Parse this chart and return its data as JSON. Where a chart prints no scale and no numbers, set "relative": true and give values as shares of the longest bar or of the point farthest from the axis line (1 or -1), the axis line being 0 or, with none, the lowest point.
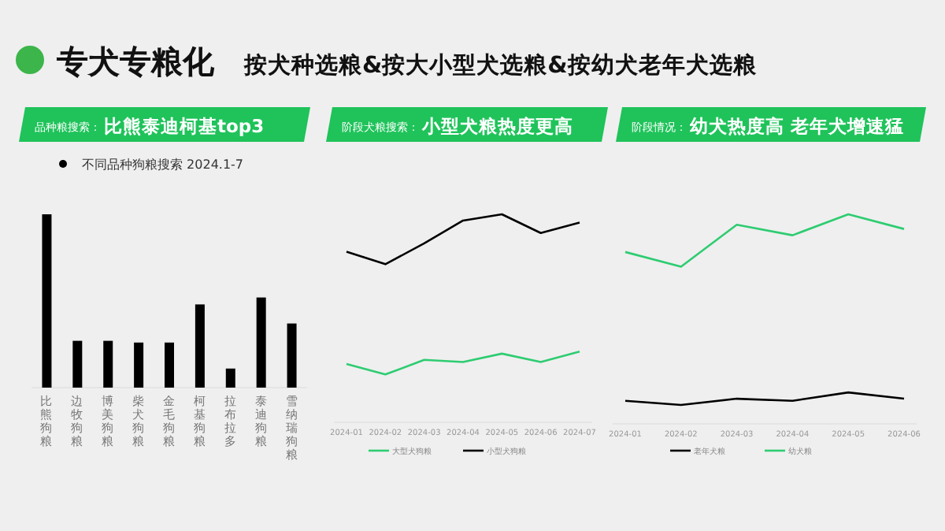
{
  "chart_data": [
    {
      "type": "bar",
      "title": "专犬专粮化",
      "subtitle": "按犬种选粮&按大小型犬选粮&按幼犬老年犬选粮",
      "annotations": [
        "品种粮搜索：",
        "比熊泰迪柯基top3"
      ],
      "relative": true,
      "legend": "top left",
      "categories": [
        "比熊狗粮",
        "边牧狗粮",
        "博美狗粮",
        "柴犬狗粮",
        "金毛狗粮",
        "柯基狗粮",
        "拉布拉多",
        "泰迪狗粮",
        "雪纳瑞狗粮"
      ],
      "series": [
        {
          "name": "不同品种狗粮搜索  2024.1-7",
          "color": "#000000",
          "values": [
            1,
            0.27,
            0.27,
            0.26,
            0.26,
            0.48,
            0.11,
            0.52,
            0.37
          ]
        }
      ]
    },
    {
      "type": "line",
      "title": "阶段犬粮搜索：",
      "subtitle": "小型犬粮热度更高",
      "relative": true,
      "legend": "bottom",
      "categories": [
        "2024-01",
        "2024-02",
        "2024-03",
        "2024-04",
        "2024-05",
        "2024-06",
        "2024-07"
      ],
      "series": [
        {
          "name": "大型犬狗粮",
          "color": "#2ecc71",
          "values": [
            0.28,
            0.23,
            0.3,
            0.29,
            0.33,
            0.29,
            0.34
          ]
        },
        {
          "name": "小型犬狗粮",
          "color": "#000000",
          "values": [
            0.82,
            0.76,
            0.86,
            0.97,
            1,
            0.91,
            0.96
          ]
        }
      ]
    },
    {
      "type": "line",
      "title": "阶段情况：",
      "subtitle": "幼犬热度高 老年犬增速猛",
      "relative": true,
      "legend": "bottom",
      "categories": [
        "2024-01",
        "2024-02",
        "2024-03",
        "2024-04",
        "2024-05",
        "2024-06"
      ],
      "series": [
        {
          "name": "老年犬粮",
          "color": "#000000",
          "values": [
            0.11,
            0.09,
            0.12,
            0.11,
            0.15,
            0.12
          ]
        },
        {
          "name": "幼犬粮",
          "color": "#2ecc71",
          "values": [
            0.82,
            0.75,
            0.95,
            0.9,
            1,
            0.93
          ]
        }
      ]
    }
  ]
}
